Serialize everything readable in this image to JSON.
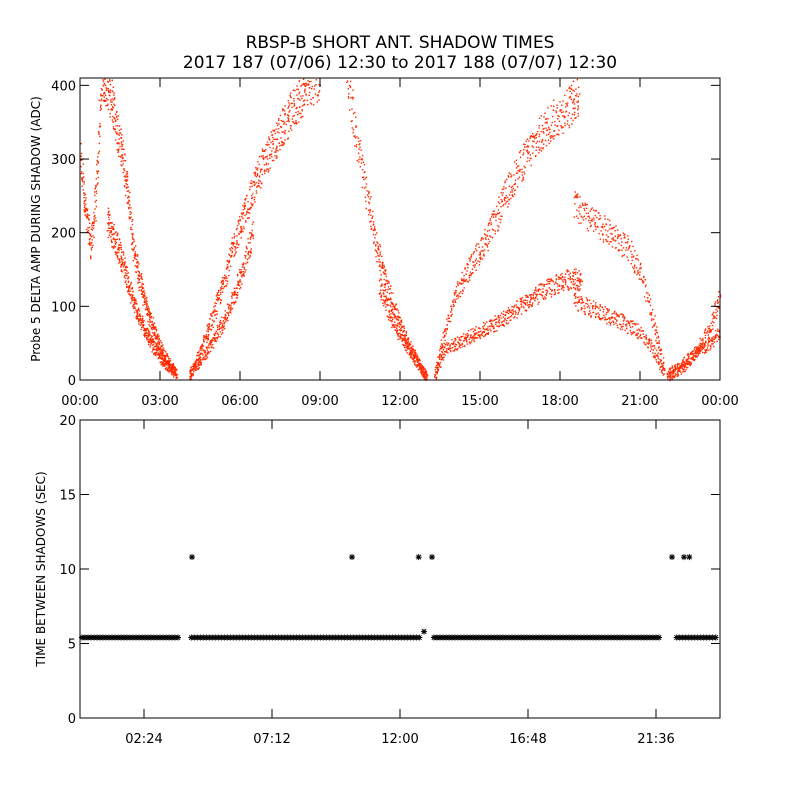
{
  "figure": {
    "title_line1": "RBSP-B SHORT ANT. SHADOW TIMES",
    "title_line2": "2017 187 (07/06) 12:30 to 2017 188 (07/07) 12:30",
    "colors": {
      "top_points": "#ff2a00",
      "bottom_points": "#000000",
      "axes": "#000000"
    }
  },
  "chart_data": [
    {
      "type": "scatter",
      "title": "",
      "xlabel": "",
      "ylabel": "Probe 5 DELTA AMP DURING SHADOW (ADC)",
      "x_unit": "hours",
      "xlim": [
        0,
        24
      ],
      "ylim": [
        0,
        410
      ],
      "x_tick_values": [
        0,
        3,
        6,
        9,
        12,
        15,
        18,
        21,
        24
      ],
      "x_tick_labels": [
        "00:00",
        "03:00",
        "06:00",
        "09:00",
        "12:00",
        "15:00",
        "18:00",
        "21:00",
        "00:00"
      ],
      "y_tick_values": [
        0,
        100,
        200,
        300,
        400
      ],
      "y_tick_labels": [
        "0",
        "100",
        "200",
        "300",
        "400"
      ],
      "color": "#ff2a00",
      "series": [
        {
          "x": [
            0.0,
            0.2,
            0.4,
            0.6,
            0.8,
            1.0,
            1.2,
            1.4,
            1.6,
            1.8,
            2.0,
            2.2,
            2.4,
            2.6,
            2.8,
            3.0,
            3.2,
            3.4,
            3.6
          ],
          "y": [
            300,
            230,
            180,
            260,
            410,
            400,
            380,
            330,
            300,
            250,
            180,
            140,
            110,
            85,
            65,
            45,
            30,
            20,
            10
          ]
        },
        {
          "x": [
            1.0,
            1.2,
            1.4,
            1.6,
            1.8,
            2.0,
            2.2,
            2.4,
            2.6,
            2.8,
            3.0,
            3.2,
            3.4,
            3.6
          ],
          "y": [
            220,
            200,
            180,
            160,
            130,
            105,
            85,
            70,
            55,
            42,
            32,
            22,
            14,
            8
          ]
        },
        {
          "x": [
            4.1,
            4.4,
            4.7,
            5.0,
            5.3,
            5.6,
            5.9,
            6.2,
            6.5,
            6.8,
            7.1,
            7.4,
            7.7,
            8.0,
            8.3,
            8.6,
            9.0
          ],
          "y": [
            5,
            30,
            60,
            90,
            125,
            165,
            200,
            230,
            260,
            290,
            310,
            330,
            350,
            370,
            385,
            400,
            410
          ]
        },
        {
          "x": [
            4.1,
            4.4,
            4.7,
            5.0,
            5.3,
            5.6,
            5.9,
            6.2,
            6.5
          ],
          "y": [
            10,
            22,
            38,
            55,
            75,
            100,
            130,
            165,
            205
          ]
        },
        {
          "x": [
            10.0,
            10.4,
            10.8,
            11.1,
            11.4,
            11.7,
            12.0,
            12.3,
            12.6,
            12.9,
            13.0
          ],
          "y": [
            410,
            320,
            240,
            185,
            140,
            105,
            75,
            50,
            30,
            10,
            2
          ]
        },
        {
          "x": [
            11.2,
            11.5,
            11.8,
            12.1,
            12.4,
            12.7,
            12.9
          ],
          "y": [
            130,
            100,
            75,
            55,
            38,
            20,
            8
          ]
        },
        {
          "x": [
            13.3,
            13.6,
            14.0,
            14.4,
            14.8,
            15.2,
            15.6,
            16.0,
            16.4,
            16.8,
            17.2,
            17.6,
            18.0,
            18.4,
            18.7
          ],
          "y": [
            5,
            55,
            110,
            140,
            165,
            190,
            220,
            255,
            285,
            310,
            330,
            350,
            360,
            375,
            390
          ]
        },
        {
          "x": [
            13.3,
            13.7,
            14.1,
            14.5,
            14.9,
            15.3,
            15.7,
            16.1,
            16.5,
            16.9,
            17.3,
            17.7,
            18.1,
            18.5,
            18.8
          ],
          "y": [
            10,
            45,
            50,
            58,
            65,
            72,
            80,
            90,
            100,
            110,
            120,
            128,
            135,
            140,
            132
          ]
        },
        {
          "x": [
            18.5,
            19.0,
            19.5,
            20.0,
            20.5,
            21.0,
            21.5,
            21.9
          ],
          "y": [
            240,
            220,
            210,
            195,
            180,
            150,
            80,
            15
          ]
        },
        {
          "x": [
            18.5,
            19.0,
            19.5,
            20.0,
            20.5,
            21.0,
            21.5,
            21.9
          ],
          "y": [
            110,
            100,
            92,
            85,
            75,
            65,
            40,
            10
          ]
        },
        {
          "x": [
            22.0,
            22.4,
            22.8,
            23.2,
            23.6,
            24.0
          ],
          "y": [
            5,
            12,
            25,
            45,
            70,
            115
          ]
        },
        {
          "x": [
            22.0,
            22.4,
            22.8,
            23.2,
            23.6,
            24.0
          ],
          "y": [
            10,
            18,
            30,
            38,
            50,
            65
          ]
        }
      ]
    },
    {
      "type": "scatter",
      "title": "",
      "xlabel": "",
      "ylabel": "TIME BETWEEN SHADOWS (SEC)",
      "x_unit": "hours",
      "xlim": [
        0,
        24
      ],
      "ylim": [
        0,
        20
      ],
      "x_tick_values": [
        2.4,
        7.2,
        12.0,
        16.8,
        21.6
      ],
      "x_tick_labels": [
        "02:24",
        "07:12",
        "12:00",
        "16:48",
        "21:36"
      ],
      "y_tick_values": [
        0,
        5,
        10,
        15,
        20
      ],
      "y_tick_labels": [
        "0",
        "5",
        "10",
        "15",
        "20"
      ],
      "color": "#000000",
      "marker": "asterisk",
      "baseline_value": 5.4,
      "baseline_ranges": [
        [
          0.0,
          3.8
        ],
        [
          4.1,
          12.8
        ],
        [
          13.2,
          21.8
        ],
        [
          22.3,
          24.0
        ]
      ],
      "outliers": {
        "x": [
          4.2,
          10.2,
          12.7,
          13.2,
          22.2,
          22.65,
          22.85,
          12.9
        ],
        "y": [
          10.8,
          10.8,
          10.8,
          10.8,
          10.8,
          10.8,
          10.8,
          5.8
        ]
      }
    }
  ]
}
